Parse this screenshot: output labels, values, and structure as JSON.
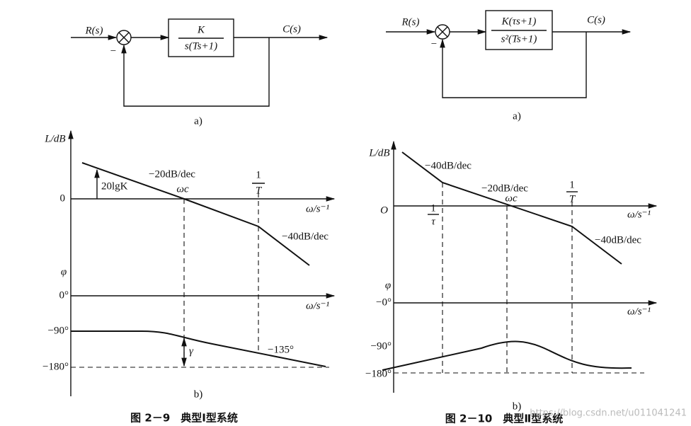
{
  "left": {
    "block_diagram": {
      "input": "R(s)",
      "output": "C(s)",
      "feedback_sign": "−",
      "numerator": "K",
      "denominator": "s(Ts+1)",
      "caption": "a)"
    },
    "bode": {
      "magnitude_axis": "L/dB",
      "zero": "0",
      "gain_label": "20lgK",
      "slope_1": "−20dB/dec",
      "crossover": "ωc",
      "corner_num": "1",
      "corner_den": "T",
      "freq_axis": "ω/s⁻¹",
      "slope_2": "−40dB/dec",
      "phase_axis": "φ",
      "phase_0": "0°",
      "phase_freq_axis": "ω/s⁻¹",
      "phase_90": "−90°",
      "phase_margin": "γ",
      "phase_135": "−135°",
      "phase_180": "−180°",
      "caption": "b)"
    },
    "figure_caption": "图 2－9　典型Ⅰ型系统"
  },
  "right": {
    "block_diagram": {
      "input": "R(s)",
      "output": "C(s)",
      "feedback_sign": "−",
      "numerator": "K(τs+1)",
      "denominator": "s²(Ts+1)",
      "caption": "a)"
    },
    "bode": {
      "magnitude_axis": "L/dB",
      "slope_1": "−40dB/dec",
      "slope_2": "−20dB/dec",
      "crossover": "ωc",
      "corner2_num": "1",
      "corner2_den": "T",
      "origin": "O",
      "corner1_num": "1",
      "corner1_den": "τ",
      "freq_axis": "ω/s⁻¹",
      "slope_3": "−40dB/dec",
      "phase_axis": "φ",
      "phase_0": "−0°",
      "phase_freq_axis": "ω/s⁻¹",
      "phase_90": "−90°",
      "phase_180": "−180°",
      "caption": "b)"
    },
    "figure_caption": "图 2－10　典型Ⅱ型系统"
  },
  "watermark": "https://blog.csdn.net/u011041241"
}
